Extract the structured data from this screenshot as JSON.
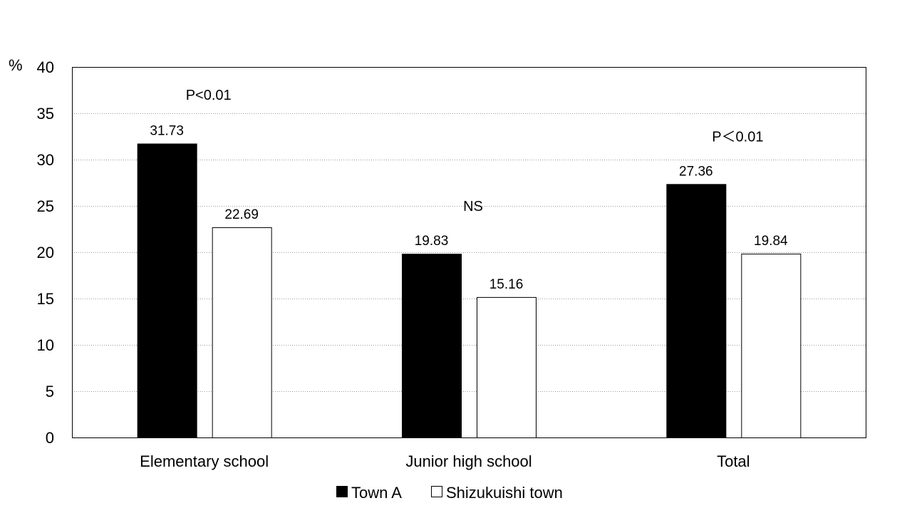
{
  "chart_data": {
    "type": "bar",
    "categories": [
      "Elementary school",
      "Junior high school",
      "Total"
    ],
    "series": [
      {
        "name": "Town A",
        "values": [
          31.73,
          19.83,
          27.36
        ],
        "color": "#000000"
      },
      {
        "name": "Shizukuishi town",
        "values": [
          22.69,
          15.16,
          19.84
        ],
        "color": "#ffffff"
      }
    ],
    "data_labels": [
      [
        "31.73",
        "19.83",
        "27.36"
      ],
      [
        "22.69",
        "15.16",
        "19.84"
      ]
    ],
    "ylabel": "%",
    "ylim": [
      0,
      40
    ],
    "yticks": [
      0,
      5,
      10,
      15,
      20,
      25,
      30,
      35,
      40
    ],
    "grid": "horizontal-dotted",
    "legend": "bottom",
    "annotations": [
      {
        "text": "P<0.01",
        "category": "Elementary school",
        "y": 37
      },
      {
        "text": "NS",
        "category": "Junior high school",
        "y": 25
      },
      {
        "text": "P＜0.01",
        "category": "Total",
        "y": 32.5
      }
    ]
  }
}
